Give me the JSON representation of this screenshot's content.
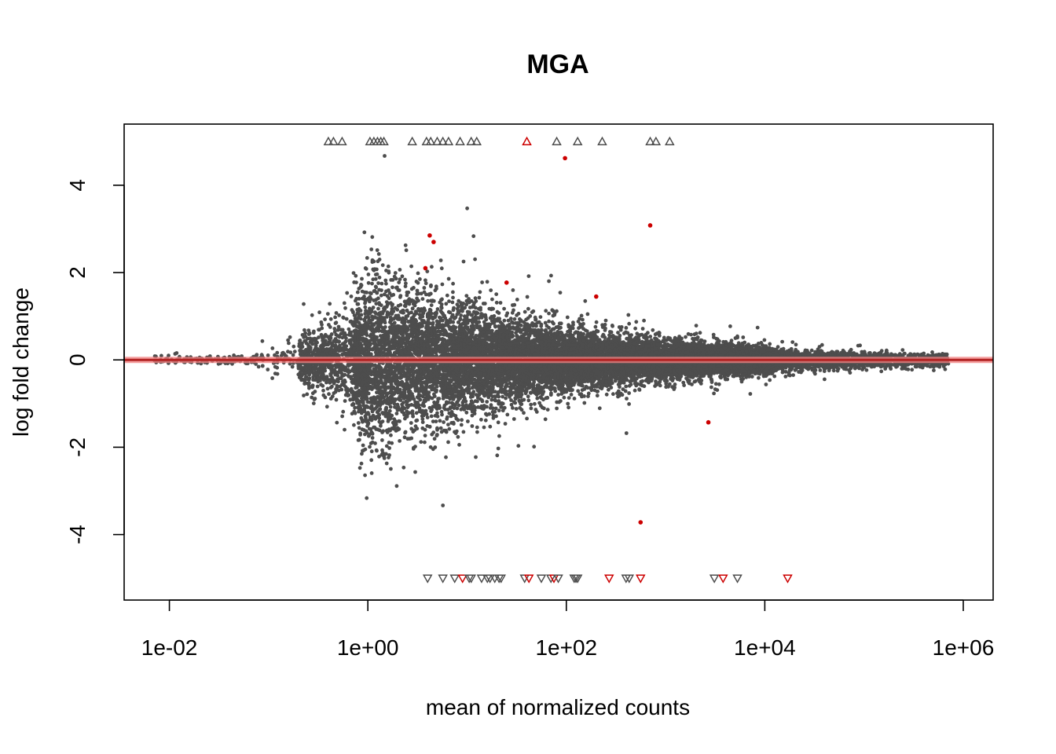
{
  "chart_data": {
    "type": "scatter",
    "title": "MGA",
    "xlabel": "mean of normalized counts",
    "ylabel": "log fold change",
    "xscale": "log10",
    "xlim": [
      0.0035,
      2000000
    ],
    "ylim": [
      -5.5,
      5.4
    ],
    "x_ticks": [
      {
        "value": 0.01,
        "label": "1e-02"
      },
      {
        "value": 1,
        "label": "1e+00"
      },
      {
        "value": 100,
        "label": "1e+02"
      },
      {
        "value": 10000,
        "label": "1e+04"
      },
      {
        "value": 1000000,
        "label": "1e+06"
      }
    ],
    "y_ticks": [
      {
        "value": -4,
        "label": "-4"
      },
      {
        "value": -2,
        "label": "-2"
      },
      {
        "value": 0,
        "label": "0"
      },
      {
        "value": 2,
        "label": "2"
      },
      {
        "value": 4,
        "label": "4"
      }
    ],
    "reference_line": {
      "y": 0,
      "color": "#f28080"
    },
    "colors": {
      "gene": "#4d4d4d",
      "significant": "#cc0000"
    },
    "clip": {
      "upper": 5,
      "lower": -5
    },
    "significant_points": [
      {
        "x": 97,
        "y": 4.62
      },
      {
        "x": 4.2,
        "y": 2.85
      },
      {
        "x": 4.6,
        "y": 2.7
      },
      {
        "x": 700,
        "y": 3.08
      },
      {
        "x": 3.8,
        "y": 2.1
      },
      {
        "x": 25,
        "y": 1.77
      },
      {
        "x": 200,
        "y": 1.45
      },
      {
        "x": 2700,
        "y": -1.43
      },
      {
        "x": 560,
        "y": -3.72
      }
    ],
    "outliers_above": [
      {
        "x": 0.4,
        "sig": false
      },
      {
        "x": 0.45,
        "sig": false
      },
      {
        "x": 0.55,
        "sig": false
      },
      {
        "x": 1.05,
        "sig": false
      },
      {
        "x": 1.15,
        "sig": false
      },
      {
        "x": 1.25,
        "sig": false
      },
      {
        "x": 1.35,
        "sig": false
      },
      {
        "x": 1.45,
        "sig": false
      },
      {
        "x": 2.8,
        "sig": false
      },
      {
        "x": 3.9,
        "sig": false
      },
      {
        "x": 4.3,
        "sig": false
      },
      {
        "x": 5.0,
        "sig": false
      },
      {
        "x": 5.7,
        "sig": false
      },
      {
        "x": 6.5,
        "sig": false
      },
      {
        "x": 8.5,
        "sig": false
      },
      {
        "x": 11,
        "sig": false
      },
      {
        "x": 12.5,
        "sig": false
      },
      {
        "x": 40,
        "sig": true
      },
      {
        "x": 80,
        "sig": false
      },
      {
        "x": 130,
        "sig": false
      },
      {
        "x": 230,
        "sig": false
      },
      {
        "x": 700,
        "sig": false
      },
      {
        "x": 800,
        "sig": false
      },
      {
        "x": 1100,
        "sig": false
      }
    ],
    "outliers_below": [
      {
        "x": 4.0,
        "sig": false
      },
      {
        "x": 5.7,
        "sig": false
      },
      {
        "x": 7.5,
        "sig": false
      },
      {
        "x": 9.0,
        "sig": true
      },
      {
        "x": 10.5,
        "sig": false
      },
      {
        "x": 11.0,
        "sig": false
      },
      {
        "x": 14,
        "sig": false
      },
      {
        "x": 16,
        "sig": false
      },
      {
        "x": 17,
        "sig": false
      },
      {
        "x": 19,
        "sig": false
      },
      {
        "x": 21,
        "sig": false
      },
      {
        "x": 22,
        "sig": false
      },
      {
        "x": 38,
        "sig": false
      },
      {
        "x": 42,
        "sig": true
      },
      {
        "x": 56,
        "sig": false
      },
      {
        "x": 70,
        "sig": false
      },
      {
        "x": 75,
        "sig": true
      },
      {
        "x": 83,
        "sig": false
      },
      {
        "x": 120,
        "sig": false
      },
      {
        "x": 125,
        "sig": false
      },
      {
        "x": 130,
        "sig": false
      },
      {
        "x": 270,
        "sig": true
      },
      {
        "x": 400,
        "sig": false
      },
      {
        "x": 430,
        "sig": false
      },
      {
        "x": 560,
        "sig": true
      },
      {
        "x": 3100,
        "sig": false
      },
      {
        "x": 3800,
        "sig": true
      },
      {
        "x": 5300,
        "sig": false
      },
      {
        "x": 17000,
        "sig": true
      }
    ],
    "gene_count_shown": 16000
  }
}
